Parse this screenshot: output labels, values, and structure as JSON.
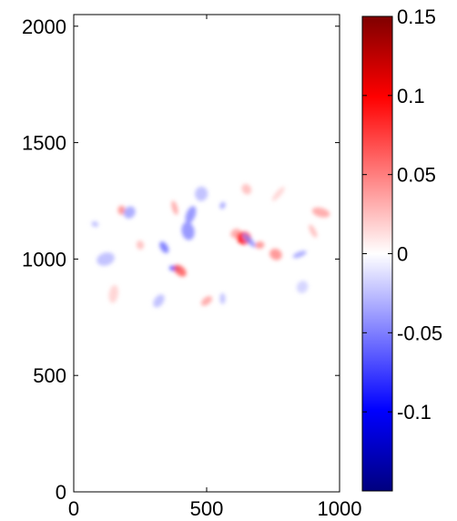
{
  "chart_data": {
    "type": "heatmap",
    "title": "",
    "xlabel": "",
    "ylabel": "",
    "xlim": [
      0,
      1000
    ],
    "ylim": [
      0,
      2050
    ],
    "x_ticks": [
      "0",
      "500",
      "1000"
    ],
    "y_ticks": [
      "0",
      "500",
      "1000",
      "1500",
      "2000"
    ],
    "x_tick_values": [
      0,
      500,
      1000
    ],
    "y_tick_values": [
      0,
      500,
      1000,
      1500,
      2000
    ],
    "grid": false,
    "colorbar": {
      "range": [
        -0.15,
        0.15
      ],
      "colormap": "blue-white-red",
      "colors": {
        "low": "#00007f",
        "mid_low": "#0000ff",
        "zero": "#ffffff",
        "mid_high": "#ff0000",
        "high": "#7f0000"
      },
      "ticks": [
        "0.15",
        "0.1",
        "0.05",
        "0",
        "-0.05",
        "-0.1"
      ],
      "tick_values": [
        0.15,
        0.1,
        0.05,
        0,
        -0.05,
        -0.1
      ]
    },
    "field": {
      "description_of_values": "mostly near zero; small patches of weak positive (red) and negative (blue) values concentrated in the band y≈700–1400",
      "blobs": [
        {
          "x": 180,
          "y": 1210,
          "v": 0.05
        },
        {
          "x": 210,
          "y": 1200,
          "v": -0.04
        },
        {
          "x": 380,
          "y": 1220,
          "v": 0.04
        },
        {
          "x": 440,
          "y": 1190,
          "v": -0.05
        },
        {
          "x": 340,
          "y": 1050,
          "v": -0.06
        },
        {
          "x": 380,
          "y": 960,
          "v": -0.08
        },
        {
          "x": 400,
          "y": 950,
          "v": 0.07
        },
        {
          "x": 430,
          "y": 1120,
          "v": -0.05
        },
        {
          "x": 560,
          "y": 1230,
          "v": -0.04
        },
        {
          "x": 610,
          "y": 1110,
          "v": 0.04
        },
        {
          "x": 640,
          "y": 1090,
          "v": 0.11
        },
        {
          "x": 660,
          "y": 1080,
          "v": -0.05
        },
        {
          "x": 700,
          "y": 1060,
          "v": 0.05
        },
        {
          "x": 760,
          "y": 1020,
          "v": 0.05
        },
        {
          "x": 850,
          "y": 1020,
          "v": -0.04
        },
        {
          "x": 930,
          "y": 1200,
          "v": 0.04
        },
        {
          "x": 500,
          "y": 820,
          "v": 0.04
        },
        {
          "x": 560,
          "y": 830,
          "v": -0.03
        },
        {
          "x": 320,
          "y": 820,
          "v": -0.03
        },
        {
          "x": 120,
          "y": 1000,
          "v": -0.03
        },
        {
          "x": 80,
          "y": 1150,
          "v": -0.03
        },
        {
          "x": 650,
          "y": 1300,
          "v": 0.03
        },
        {
          "x": 480,
          "y": 1280,
          "v": -0.03
        },
        {
          "x": 770,
          "y": 1280,
          "v": 0.02
        },
        {
          "x": 250,
          "y": 1060,
          "v": 0.03
        },
        {
          "x": 860,
          "y": 880,
          "v": -0.02
        },
        {
          "x": 900,
          "y": 1120,
          "v": 0.03
        },
        {
          "x": 150,
          "y": 850,
          "v": 0.02
        }
      ]
    }
  }
}
